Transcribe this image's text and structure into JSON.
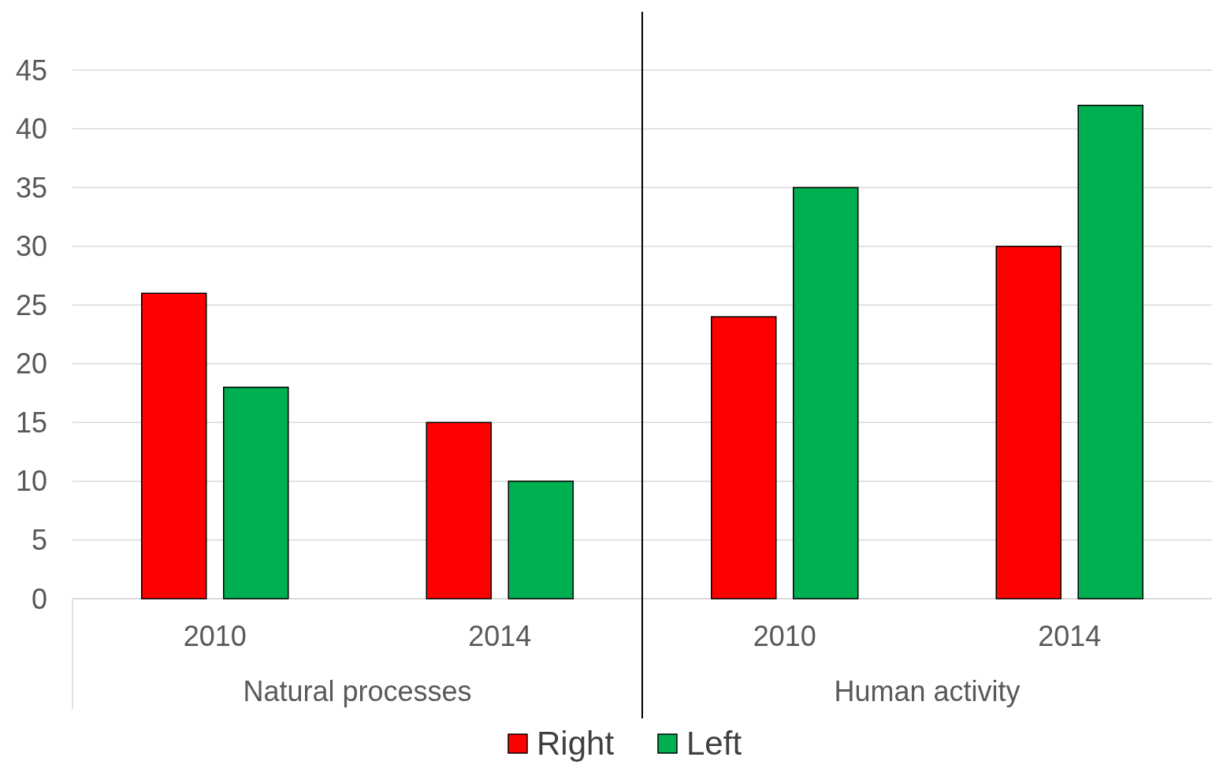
{
  "chart_data": [
    {
      "type": "bar",
      "categories": [
        "2010",
        "2014"
      ],
      "xlabel": "Natural processes",
      "series": [
        {
          "name": "Right",
          "color": "#ff0000",
          "values": [
            26,
            15
          ]
        },
        {
          "name": "Left",
          "color": "#00b050",
          "values": [
            18,
            10
          ]
        }
      ],
      "ylim": [
        0,
        45
      ],
      "yticks": [
        0,
        5,
        10,
        15,
        20,
        25,
        30,
        35,
        40,
        45
      ],
      "grid": "y",
      "legend": "bottom"
    },
    {
      "type": "bar",
      "categories": [
        "2010",
        "2014"
      ],
      "xlabel": "Human activity",
      "series": [
        {
          "color": "#ff0000",
          "values": [
            24,
            30
          ]
        },
        {
          "color": "#00b050",
          "values": [
            35,
            42
          ]
        }
      ],
      "ylim": [
        0,
        45
      ],
      "yticks": [
        0,
        5,
        10,
        15,
        20,
        25,
        30,
        35,
        40,
        45
      ],
      "grid": "y",
      "tick_labels": "x"
    }
  ]
}
